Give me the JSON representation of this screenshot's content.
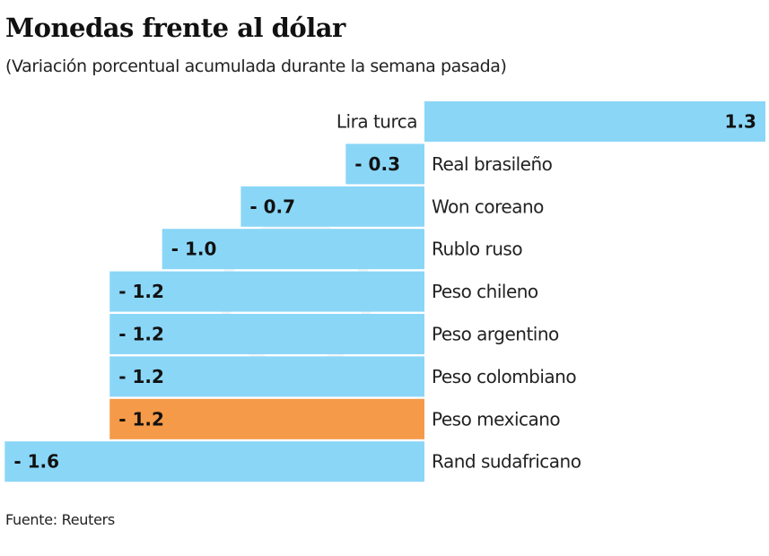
{
  "chart_data": {
    "type": "bar",
    "orientation": "horizontal",
    "title": "Monedas frente al dólar",
    "subtitle": "(Variación porcentual acumulada durante la semana pasada)",
    "source": "Fuente: Reuters",
    "categories": [
      "Lira turca",
      "Real brasileño",
      "Won coreano",
      "Rublo ruso",
      "Peso chileno",
      "Peso argentino",
      "Peso colombiano",
      "Peso mexicano",
      "Rand sudafricano"
    ],
    "values": [
      1.3,
      -0.3,
      -0.7,
      -1.0,
      -1.2,
      -1.2,
      -1.2,
      -1.2,
      -1.6
    ],
    "labels": [
      "1.3",
      "- 0.3",
      "- 0.7",
      "- 1.0",
      "- 1.2",
      "- 1.2",
      "- 1.2",
      "- 1.2",
      "- 1.6"
    ],
    "highlight": "Peso mexicano",
    "colors": {
      "default": "#8ad6f7",
      "highlight": "#f59a48"
    },
    "grid": false,
    "legend": "none"
  }
}
